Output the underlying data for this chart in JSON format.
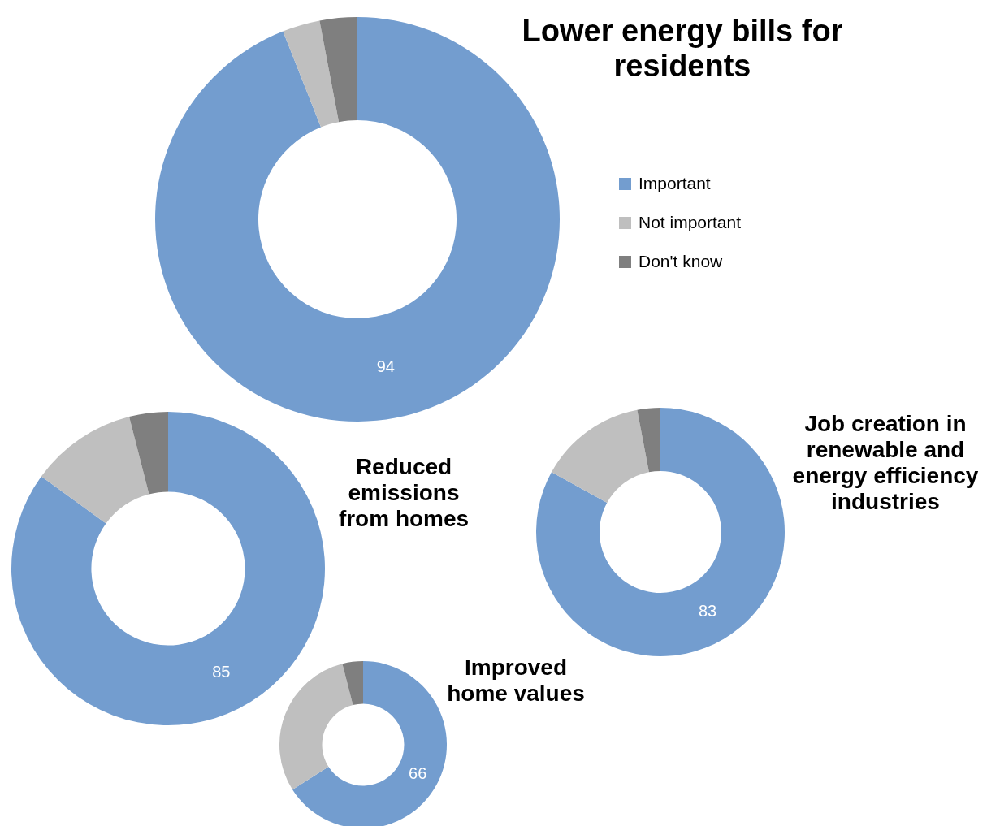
{
  "chart_data": [
    {
      "type": "donut",
      "title": "Lower energy bills for residents",
      "categories": [
        "Important",
        "Not important",
        "Don't know"
      ],
      "values": [
        94,
        3,
        3
      ],
      "colors": [
        "#739dcf",
        "#bfbfbf",
        "#7f7f7f"
      ],
      "value_labels": [
        "94",
        null,
        null
      ],
      "legend": "right"
    },
    {
      "type": "donut",
      "title": "Reduced emissions from homes",
      "categories": [
        null,
        null,
        null
      ],
      "values": [
        85,
        11,
        4
      ],
      "colors": [
        "#739dcf",
        "#bfbfbf",
        "#7f7f7f"
      ],
      "value_labels": [
        "85",
        null,
        null
      ]
    },
    {
      "type": "donut",
      "title": "Job creation in renewable and energy efficiency industries",
      "categories": [
        null,
        null,
        null
      ],
      "values": [
        83,
        14,
        3
      ],
      "colors": [
        "#739dcf",
        "#bfbfbf",
        "#7f7f7f"
      ],
      "value_labels": [
        "83",
        null,
        null
      ]
    },
    {
      "type": "donut",
      "title": "Improved home values",
      "categories": [
        null,
        null,
        null
      ],
      "values": [
        66,
        30,
        4
      ],
      "colors": [
        "#739dcf",
        "#bfbfbf",
        "#7f7f7f"
      ],
      "value_labels": [
        "66",
        null,
        null
      ]
    }
  ]
}
